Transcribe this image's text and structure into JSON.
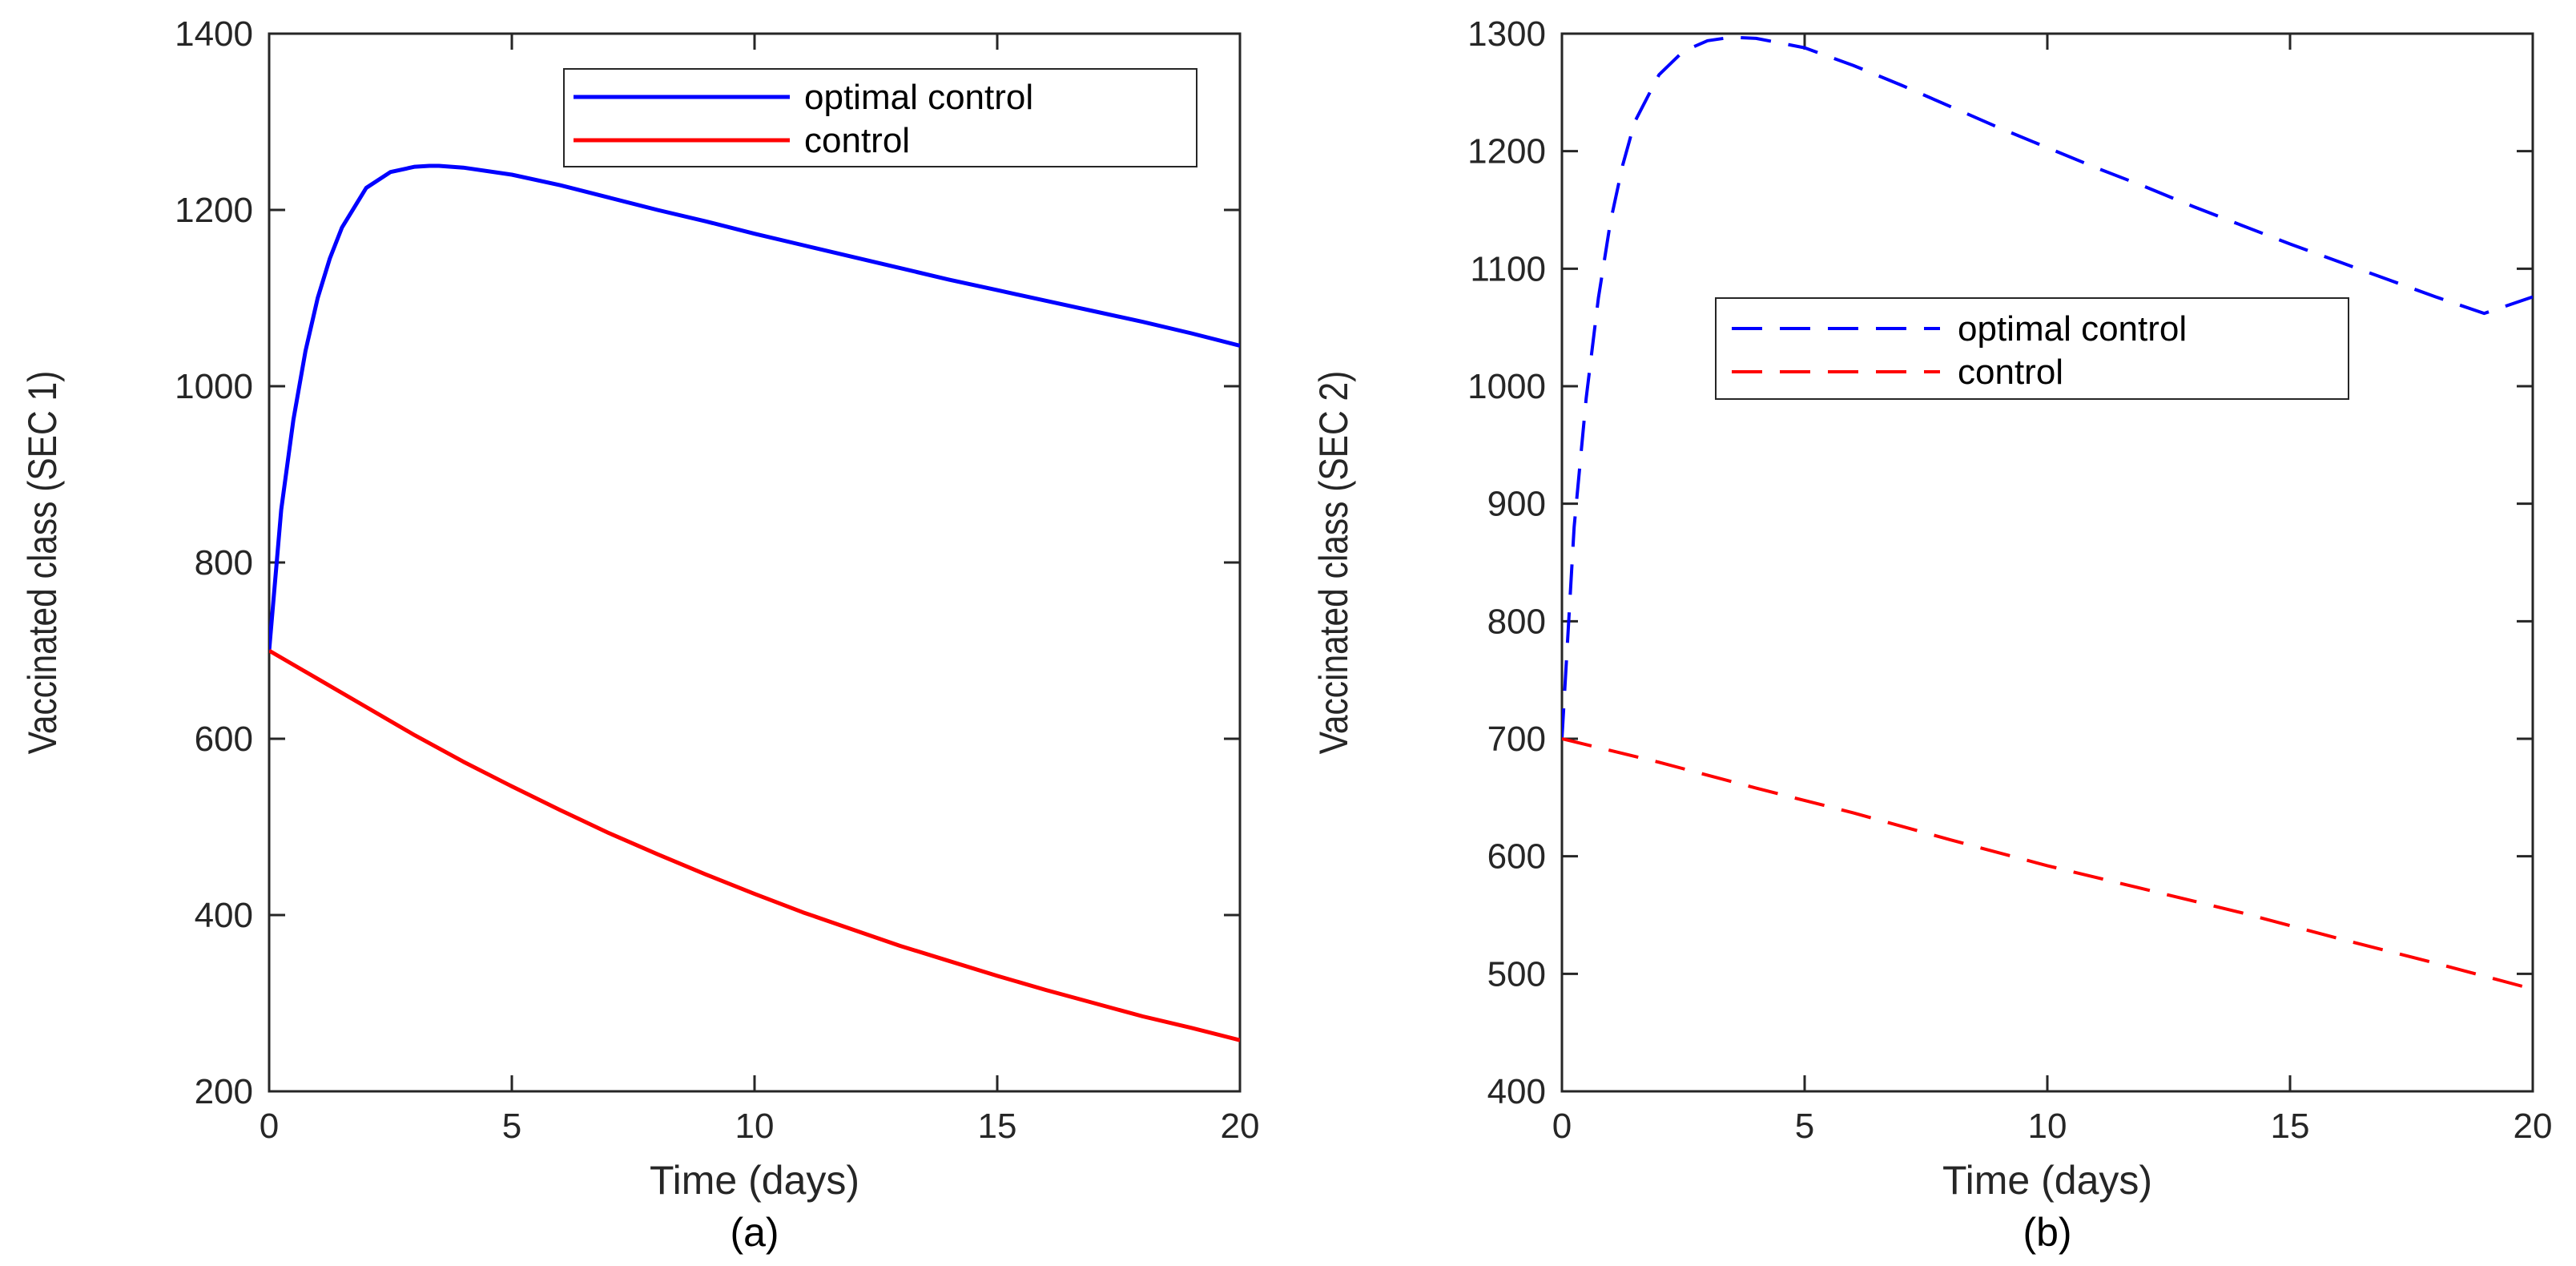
{
  "chart_data": [
    {
      "type": "line",
      "caption": "(a)",
      "xlabel": "Time (days)",
      "ylabel": "Vaccinated class (SEC 1)",
      "xlim": [
        0,
        20
      ],
      "ylim": [
        200,
        1400
      ],
      "xticks": [
        0,
        5,
        10,
        15,
        20
      ],
      "yticks": [
        200,
        400,
        600,
        800,
        1000,
        1200,
        1400
      ],
      "grid": false,
      "legend_position": "top-right",
      "series": [
        {
          "name": "optimal control",
          "color": "#0000ff",
          "dashed": false,
          "x": [
            0,
            0.25,
            0.5,
            0.75,
            1,
            1.25,
            1.5,
            2,
            2.5,
            3,
            3.3,
            3.5,
            4,
            5,
            6,
            7,
            8,
            9,
            10,
            11,
            12,
            13,
            14,
            15,
            16,
            17,
            18,
            19,
            20
          ],
          "y": [
            700,
            860,
            962,
            1040,
            1100,
            1145,
            1180,
            1225,
            1243,
            1249,
            1250,
            1250,
            1248,
            1240,
            1228,
            1214,
            1200,
            1187,
            1173,
            1160,
            1147,
            1134,
            1121,
            1109,
            1097,
            1085,
            1073,
            1060,
            1046
          ]
        },
        {
          "name": "control",
          "color": "#ff0000",
          "dashed": false,
          "x": [
            0,
            1,
            2,
            3,
            4,
            5,
            6,
            7,
            8,
            9,
            10,
            11,
            12,
            13,
            14,
            15,
            16,
            17,
            18,
            19,
            20
          ],
          "y": [
            700,
            668,
            636,
            604,
            574,
            546,
            519,
            493,
            469,
            446,
            424,
            403,
            384,
            365,
            348,
            331,
            315,
            300,
            285,
            272,
            258
          ]
        }
      ]
    },
    {
      "type": "line",
      "caption": "(b)",
      "xlabel": "Time (days)",
      "ylabel": "Vaccinated class (SEC 2)",
      "xlim": [
        0,
        20
      ],
      "ylim": [
        400,
        1300
      ],
      "xticks": [
        0,
        5,
        10,
        15,
        20
      ],
      "yticks": [
        400,
        500,
        600,
        700,
        800,
        900,
        1000,
        1100,
        1200,
        1300
      ],
      "grid": false,
      "legend_position": "center-right",
      "series": [
        {
          "name": "optimal control",
          "color": "#0000ff",
          "dashed": true,
          "x": [
            0,
            0.25,
            0.5,
            0.75,
            1,
            1.25,
            1.5,
            2,
            2.5,
            3,
            3.5,
            4,
            5,
            6,
            7,
            8,
            9,
            10,
            11,
            12,
            13,
            14,
            15,
            16,
            17,
            18,
            19,
            20
          ],
          "y": [
            700,
            880,
            990,
            1075,
            1140,
            1188,
            1225,
            1265,
            1285,
            1294,
            1297,
            1296,
            1288,
            1273,
            1256,
            1238,
            1220,
            1203,
            1186,
            1170,
            1153,
            1137,
            1121,
            1106,
            1091,
            1076,
            1062,
            1076
          ]
        },
        {
          "name": "control",
          "color": "#ff0000",
          "dashed": true,
          "x": [
            0,
            2,
            4,
            6,
            8,
            10,
            12,
            14,
            16,
            18,
            20
          ],
          "y": [
            700,
            680,
            658,
            637,
            614,
            592,
            572,
            552,
            530,
            509,
            487
          ]
        }
      ]
    }
  ]
}
